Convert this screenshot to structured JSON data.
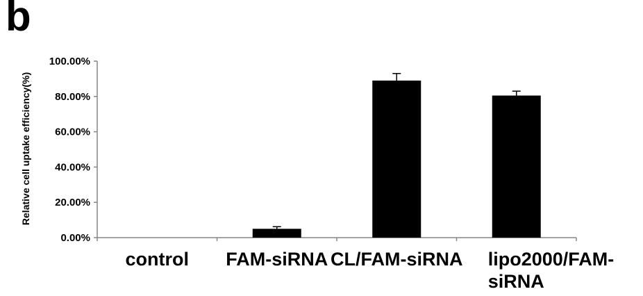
{
  "panel_label": "b",
  "chart_data": {
    "type": "bar",
    "categories": [
      "control",
      "FAM-siRNA",
      "CL/FAM-siRNA",
      "lipo2000/FAM-\nsiRNA"
    ],
    "values": [
      0.0,
      5.0,
      89.0,
      80.5
    ],
    "errors": [
      0.0,
      1.2,
      4.0,
      2.5
    ],
    "ylabel": "Relative cell uptake efficiency(%)",
    "xlabel": "",
    "ylim": [
      0,
      100
    ],
    "yticks": [
      0,
      20,
      40,
      60,
      80,
      100
    ],
    "ytick_labels": [
      "0.00%",
      "20.00%",
      "40.00%",
      "60.00%",
      "80.00%",
      "100.00%"
    ],
    "bar_color": "#000000",
    "grid": false,
    "legend": "none"
  }
}
